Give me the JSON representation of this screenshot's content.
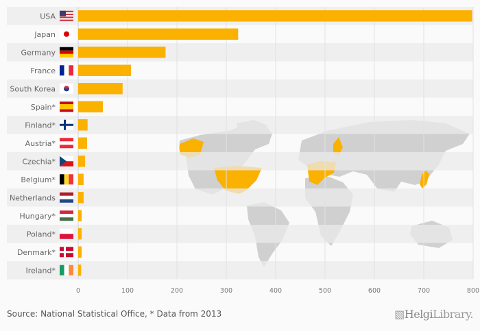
{
  "chart_data": {
    "type": "bar",
    "orientation": "horizontal",
    "categories": [
      "USA",
      "Japan",
      "Germany",
      "France",
      "South Korea",
      "Spain*",
      "Finland*",
      "Austria*",
      "Czechia*",
      "Belgium*",
      "Netherlands",
      "Hungary*",
      "Poland*",
      "Denmark*",
      "Ireland*"
    ],
    "flags": [
      "usa",
      "japan",
      "germany",
      "france",
      "korea",
      "spain",
      "finland",
      "austria",
      "czechia",
      "belgium",
      "netherlands",
      "hungary",
      "poland",
      "denmark",
      "ireland"
    ],
    "values": [
      798,
      324,
      177,
      107,
      90,
      50,
      19,
      18,
      14,
      11,
      11,
      7,
      7,
      7,
      6
    ],
    "xlim": [
      0,
      800
    ],
    "xticks": [
      0,
      100,
      200,
      300,
      400,
      500,
      600,
      700,
      800
    ],
    "bar_color": "#fbb100",
    "grid": true,
    "source": "Source: National Statistical Office, * Data from 2013"
  },
  "brand": {
    "part1": "Helgi",
    "part2": "Library."
  }
}
